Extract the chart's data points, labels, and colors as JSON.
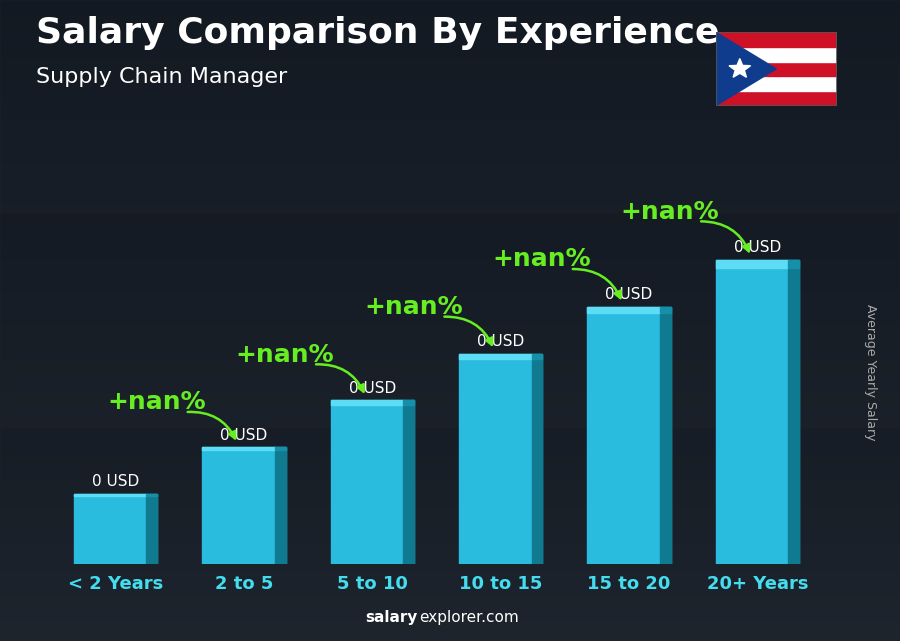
{
  "title": "Salary Comparison By Experience",
  "subtitle": "Supply Chain Manager",
  "categories": [
    "< 2 Years",
    "2 to 5",
    "5 to 10",
    "10 to 15",
    "15 to 20",
    "20+ Years"
  ],
  "values": [
    1.5,
    2.5,
    3.5,
    4.5,
    5.5,
    6.5
  ],
  "bar_color_main": "#29BCDE",
  "bar_color_light": "#5DDDF5",
  "bar_color_dark": "#1590A8",
  "bar_color_right": "#0F7A90",
  "ylabel": "Average Yearly Salary",
  "value_labels": [
    "0 USD",
    "0 USD",
    "0 USD",
    "0 USD",
    "0 USD",
    "0 USD"
  ],
  "pct_labels": [
    "+nan%",
    "+nan%",
    "+nan%",
    "+nan%",
    "+nan%"
  ],
  "title_fontsize": 26,
  "subtitle_fontsize": 16,
  "bar_label_fontsize": 11,
  "pct_fontsize": 18,
  "tick_fontsize": 13,
  "watermark": "salaryexplorer.com",
  "overlay_color": "#1a2535",
  "overlay_alpha": 0.55,
  "title_color": "#ffffff",
  "pct_color": "#66EE22",
  "tick_color": "#44DDEE",
  "ylabel_color": "#aaaaaa",
  "bar_width": 0.65,
  "ylim_max": 8.5
}
